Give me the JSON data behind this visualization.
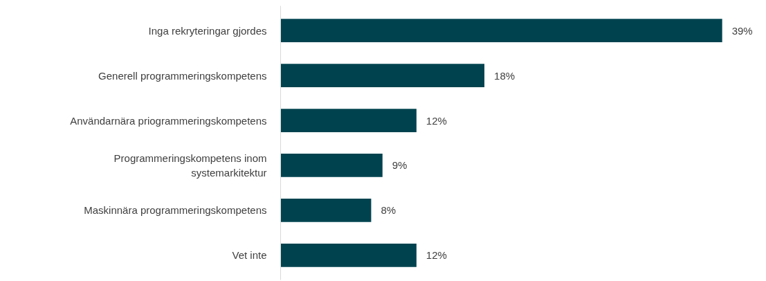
{
  "chart_data": {
    "type": "bar",
    "orientation": "horizontal",
    "categories": [
      "Inga rekryteringar gjordes",
      "Generell programmeringskompetens",
      "Användarnära priogrammeringskompetens",
      "Programmeringskompetens inom systemarkitektur",
      "Maskinnära programmeringskompetens",
      "Vet inte"
    ],
    "values": [
      39,
      18,
      12,
      9,
      8,
      12
    ],
    "value_labels": [
      "39%",
      "18%",
      "12%",
      "9%",
      "8%",
      "12%"
    ],
    "color": "#00434f",
    "grid": false
  }
}
